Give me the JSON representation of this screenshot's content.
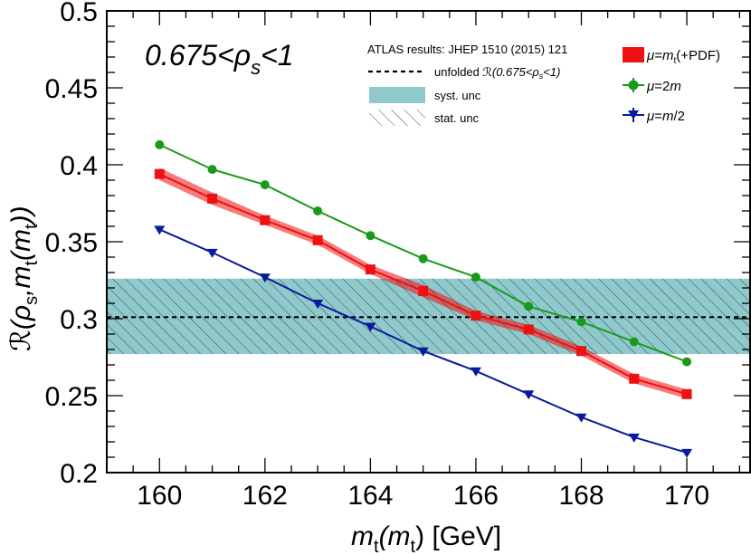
{
  "chart_data": {
    "type": "line",
    "title": "",
    "annotation": {
      "main": "0.675<ρ",
      "sub": "s",
      "tail": "<1"
    },
    "xlabel": {
      "m": "m",
      "sub1": "t",
      "paren_open": "(m",
      "sub2": "t",
      "paren_close": ")",
      "unit": " [GeV]"
    },
    "ylabel": {
      "R": "ℛ",
      "open": "(ρ",
      "sub1": "s",
      "mid": ",m",
      "sub2": "t",
      "mid2": "(m",
      "sub3": "t",
      "close": "))"
    },
    "xlim": [
      159,
      171.2
    ],
    "ylim": [
      0.2,
      0.5
    ],
    "xticks": [
      160,
      162,
      164,
      166,
      168,
      170
    ],
    "xtick_labels": [
      "160",
      "162",
      "164",
      "166",
      "168",
      "170"
    ],
    "yticks": [
      0.2,
      0.25,
      0.3,
      0.35,
      0.4,
      0.45,
      0.5
    ],
    "ytick_labels": [
      "0.2",
      "0.25",
      "0.3",
      "0.35",
      "0.4",
      "0.45",
      "0.5"
    ],
    "x": [
      160,
      161,
      162,
      163,
      164,
      165,
      166,
      167,
      168,
      169,
      170
    ],
    "series": [
      {
        "name": "μ=2m",
        "color": "#1a9a1a",
        "marker": "circle",
        "values": [
          0.413,
          0.397,
          0.387,
          0.37,
          0.354,
          0.339,
          0.327,
          0.308,
          0.298,
          0.285,
          0.272
        ]
      },
      {
        "name": "μ=mt(+PDF)",
        "color": "#ee1111",
        "marker": "square",
        "values": [
          0.394,
          0.378,
          0.364,
          0.351,
          0.332,
          0.318,
          0.302,
          0.293,
          0.279,
          0.261,
          0.251
        ],
        "band": [
          0.004,
          0.004,
          0.003,
          0.003,
          0.003,
          0.004,
          0.003,
          0.003,
          0.003,
          0.003,
          0.003
        ]
      },
      {
        "name": "μ=m/2",
        "color": "#0a1a9c",
        "marker": "triangle-down",
        "values": [
          0.358,
          0.343,
          0.327,
          0.31,
          0.295,
          0.279,
          0.266,
          0.251,
          0.236,
          0.223,
          0.213
        ]
      }
    ],
    "reference": {
      "name": "unfolded ℛ(0.675<ρs<1)",
      "value": 0.301,
      "syst_low": 0.277,
      "syst_high": 0.326,
      "band_color": "#8fc9cc"
    },
    "legend": {
      "header": "ATLAS results: JHEP 1510 (2015) 121",
      "unfolded_text": "unfolded ",
      "unfolded_R": "ℛ",
      "unfolded_range": "(0.675<ρ",
      "unfolded_sub": "s",
      "unfolded_tail": "<1)",
      "syst": "syst. unc",
      "stat": "stat. unc",
      "mu_pdf": {
        "mu": "μ",
        "eq": "=m",
        "sub": "t",
        "tail": "(+PDF)"
      },
      "mu_2m": {
        "mu": "μ",
        "eq": "=2",
        "m": "m"
      },
      "mu_half": {
        "mu": "μ",
        "eq": "=",
        "m": "m",
        "tail": "/2"
      }
    }
  }
}
